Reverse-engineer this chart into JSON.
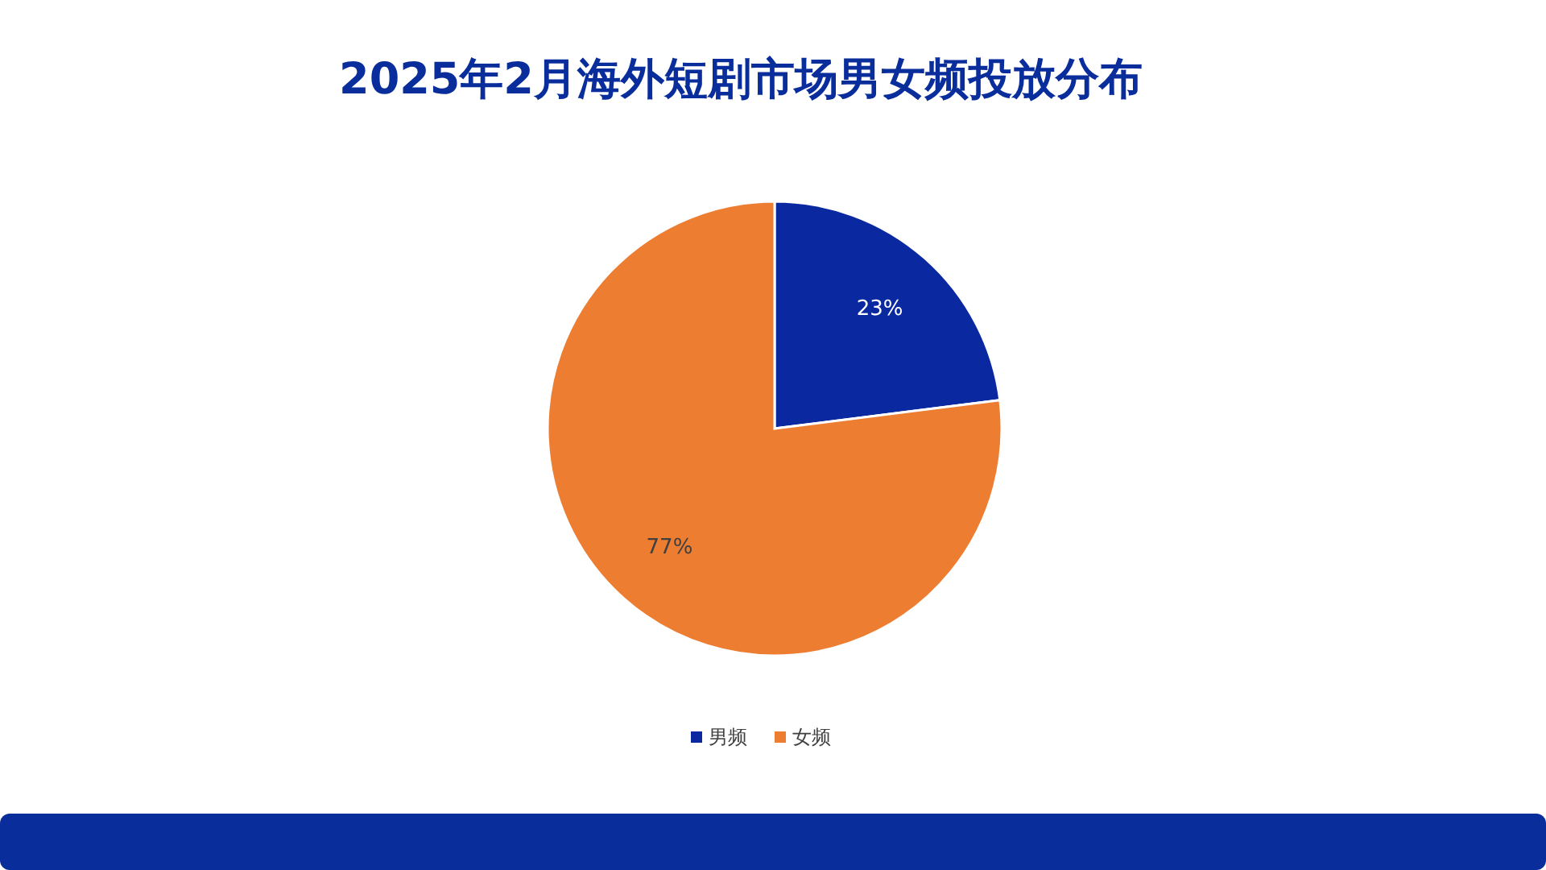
{
  "chart_data": {
    "type": "pie",
    "title": "2025年2月海外短剧市场男女频投放分布",
    "categories": [
      "男频",
      "女频"
    ],
    "values": [
      23,
      77
    ],
    "value_labels": [
      "23%",
      "77%"
    ],
    "colors": [
      "#0a29a0",
      "#ed7d31"
    ],
    "legend": "bottom"
  }
}
